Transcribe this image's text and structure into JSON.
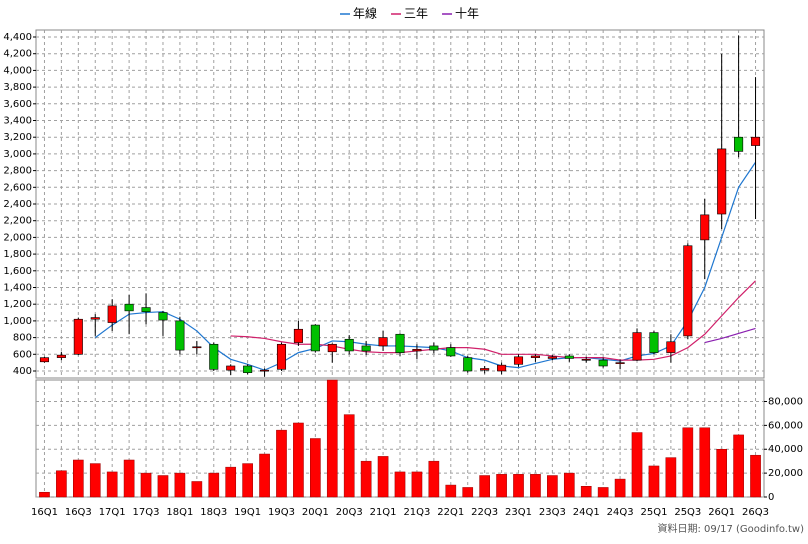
{
  "chart_data": {
    "type": "candlestick",
    "categories": [
      "16Q1",
      null,
      "16Q3",
      null,
      "17Q1",
      null,
      "17Q3",
      null,
      "18Q1",
      null,
      "18Q3",
      null,
      "19Q1",
      null,
      "19Q3",
      null,
      "20Q1",
      null,
      "20Q3",
      null,
      "21Q1",
      null,
      "21Q3",
      null,
      "22Q1",
      null,
      "22Q3",
      null,
      "23Q1",
      null,
      "23Q3",
      null,
      "24Q1",
      null,
      "24Q3",
      null,
      "25Q1",
      null,
      "25Q3",
      null,
      "26Q1",
      null,
      "26Q3"
    ],
    "open": [
      510,
      560,
      600,
      1020,
      980,
      1200,
      1160,
      1100,
      1000,
      680,
      720,
      410,
      460,
      400,
      420,
      740,
      950,
      630,
      780,
      700,
      700,
      840,
      640,
      700,
      680,
      560,
      410,
      400,
      480,
      560,
      550,
      580,
      530,
      530,
      490,
      530,
      860,
      620,
      820,
      1970,
      2280,
      3200,
      3100
    ],
    "high": [
      570,
      630,
      1040,
      1080,
      1260,
      1310,
      1330,
      1120,
      1050,
      760,
      740,
      480,
      480,
      430,
      740,
      1000,
      960,
      730,
      830,
      760,
      880,
      850,
      720,
      740,
      720,
      580,
      460,
      500,
      600,
      600,
      590,
      600,
      570,
      560,
      540,
      910,
      880,
      840,
      1930,
      2460,
      4200,
      4420,
      3920
    ],
    "low": [
      500,
      530,
      590,
      820,
      880,
      840,
      960,
      820,
      600,
      600,
      400,
      350,
      360,
      330,
      400,
      700,
      620,
      500,
      600,
      590,
      640,
      580,
      540,
      610,
      570,
      380,
      370,
      360,
      450,
      510,
      530,
      510,
      500,
      440,
      420,
      520,
      600,
      500,
      780,
      1500,
      2100,
      2960,
      2220
    ],
    "close": [
      560,
      590,
      1020,
      1040,
      1180,
      1120,
      1110,
      1010,
      650,
      690,
      420,
      460,
      380,
      410,
      720,
      900,
      640,
      720,
      640,
      640,
      800,
      620,
      660,
      650,
      580,
      400,
      430,
      470,
      570,
      580,
      570,
      550,
      540,
      460,
      500,
      860,
      620,
      750,
      1900,
      2270,
      3060,
      3030,
      3200
    ],
    "up_color": "#ff0000",
    "down_color": "#00c000",
    "ylim": [
      316,
      4484
    ],
    "yticks": [
      400,
      600,
      800,
      {
        "value": 1000,
        "label": "1,000"
      },
      {
        "value": 1200,
        "label": "1,200"
      },
      {
        "value": 1400,
        "label": "1,400"
      },
      {
        "value": 1600,
        "label": "1,600"
      },
      {
        "value": 1800,
        "label": "1,800"
      },
      {
        "value": 2000,
        "label": "2,000"
      },
      {
        "value": 2200,
        "label": "2,200"
      },
      {
        "value": 2400,
        "label": "2,400"
      },
      {
        "value": 2600,
        "label": "2,600"
      },
      {
        "value": 2800,
        "label": "2,800"
      },
      {
        "value": 3000,
        "label": "3,000"
      },
      {
        "value": 3200,
        "label": "3,200"
      },
      {
        "value": 3400,
        "label": "3,400"
      },
      {
        "value": 3600,
        "label": "3,600"
      },
      {
        "value": 3800,
        "label": "3,800"
      },
      {
        "value": 4000,
        "label": "4,000"
      },
      {
        "value": 4200,
        "label": "4,200"
      },
      {
        "value": 4400,
        "label": "4,400"
      }
    ],
    "grid": true,
    "legend": "top",
    "series": [
      {
        "name": "年線",
        "color": "#1f77d0",
        "values": [
          null,
          null,
          null,
          800,
          950,
          1080,
          1100,
          1110,
          1020,
          880,
          680,
          540,
          480,
          410,
          500,
          620,
          670,
          760,
          750,
          720,
          700,
          700,
          690,
          680,
          640,
          560,
          530,
          460,
          440,
          490,
          540,
          560,
          560,
          540,
          520,
          580,
          610,
          700,
          1000,
          1400,
          2000,
          2600,
          2900
        ]
      },
      {
        "name": "三年",
        "color": "#d0206a",
        "values": [
          null,
          null,
          null,
          null,
          null,
          null,
          null,
          null,
          null,
          null,
          null,
          820,
          810,
          790,
          750,
          720,
          720,
          700,
          660,
          630,
          620,
          620,
          640,
          660,
          680,
          680,
          660,
          600,
          600,
          600,
          580,
          560,
          560,
          560,
          530,
          530,
          540,
          580,
          680,
          840,
          1060,
          1280,
          1480
        ]
      },
      {
        "name": "十年",
        "color": "#8a1fb0",
        "values": [
          null,
          null,
          null,
          null,
          null,
          null,
          null,
          null,
          null,
          null,
          null,
          null,
          null,
          null,
          null,
          null,
          null,
          null,
          null,
          null,
          null,
          null,
          null,
          null,
          null,
          null,
          null,
          null,
          null,
          null,
          null,
          null,
          null,
          null,
          null,
          null,
          null,
          null,
          null,
          740,
          790,
          850,
          910
        ]
      }
    ],
    "volume": {
      "color": "#ff0000",
      "values": [
        4000,
        22000,
        31000,
        28000,
        21000,
        31000,
        20000,
        18000,
        20000,
        13000,
        20000,
        25000,
        28000,
        36000,
        56000,
        62000,
        49000,
        98000,
        69000,
        30000,
        34000,
        21000,
        21000,
        30000,
        10000,
        8000,
        18000,
        19000,
        19000,
        19000,
        18000,
        20000,
        9000,
        8000,
        15000,
        54000,
        26000,
        33000,
        58000,
        58000,
        40000,
        52000,
        35000
      ],
      "ylim": [
        0,
        98000
      ],
      "yticks": [
        0,
        {
          "value": 20000,
          "label": "20,000"
        },
        {
          "value": 40000,
          "label": "40,000"
        },
        {
          "value": 60000,
          "label": "60,000"
        },
        {
          "value": 80000,
          "label": "80,000"
        }
      ]
    },
    "footer": "資料日期: 09/17 (Goodinfo.tw)"
  }
}
